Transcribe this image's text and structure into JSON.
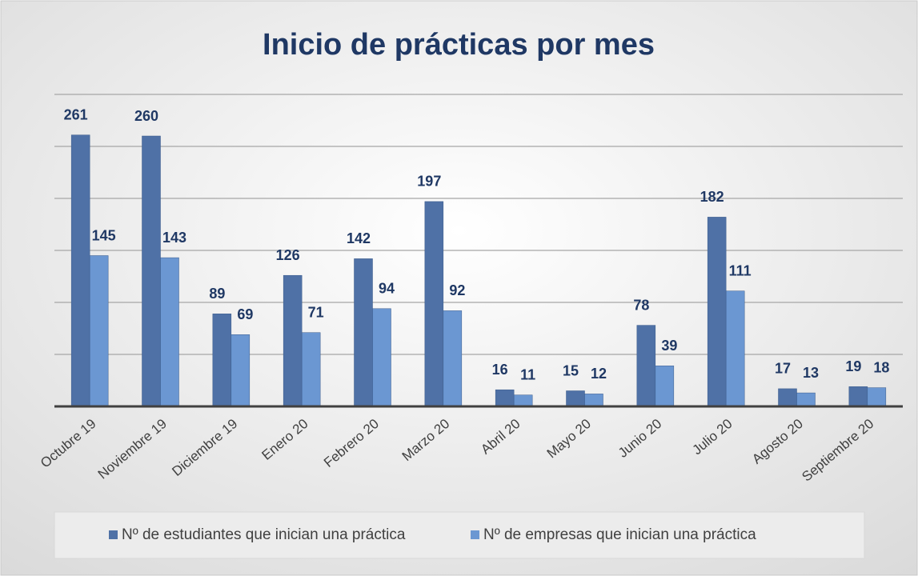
{
  "chart_data": {
    "type": "bar",
    "title": "Inicio de prácticas por mes",
    "categories": [
      "Octubre 19",
      "Noviembre 19",
      "Diciembre 19",
      "Enero 20",
      "Febrero 20",
      "Marzo 20",
      "Abril 20",
      "Mayo 20",
      "Junio 20",
      "Julio 20",
      "Agosto 20",
      "Septiembre 20"
    ],
    "series": [
      {
        "name": "Nº de estudiantes que inician una práctica",
        "color": "#4f71a6",
        "values": [
          261,
          260,
          89,
          126,
          142,
          197,
          16,
          15,
          78,
          182,
          17,
          19
        ]
      },
      {
        "name": "Nº de empresas que inician una práctica",
        "color": "#6b97d2",
        "values": [
          145,
          143,
          69,
          71,
          94,
          92,
          11,
          12,
          39,
          111,
          13,
          18
        ]
      }
    ],
    "ylim": [
      0,
      300
    ],
    "yticks": [
      0,
      50,
      100,
      150,
      200,
      250,
      300
    ],
    "grid": true,
    "legend": "bottom"
  }
}
